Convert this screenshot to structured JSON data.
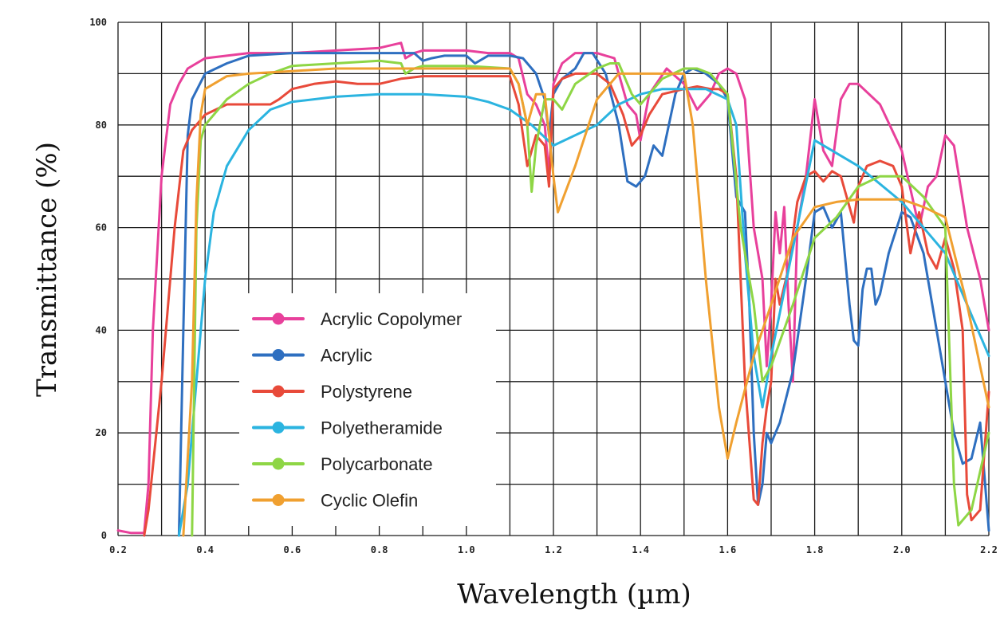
{
  "chart_data": {
    "type": "line",
    "title": "",
    "xlabel": "Wavelength (µm)",
    "ylabel": "Transmittance (%)",
    "xlim": [
      0.2,
      2.2
    ],
    "ylim": [
      0,
      100
    ],
    "grid": true,
    "legend_position": "lower-left",
    "x_ticks": [
      0.2,
      0.4,
      0.6,
      0.8,
      1.0,
      1.2,
      1.4,
      1.6,
      1.8,
      2.0,
      2.2
    ],
    "x_tick_labels": [
      "0.2",
      "0.4",
      "0.6",
      "0.8",
      "1.0",
      "1.2",
      "1.4",
      "1.6",
      "1.8",
      "2.0",
      "2.2"
    ],
    "y_ticks": [
      0,
      20,
      40,
      60,
      80,
      100
    ],
    "y_tick_labels": [
      "0",
      "20",
      "40",
      "60",
      "80",
      "100"
    ],
    "series": [
      {
        "name": "Acrylic Copolymer",
        "color": "#e8409b",
        "x": [
          0.2,
          0.23,
          0.26,
          0.27,
          0.28,
          0.3,
          0.32,
          0.34,
          0.36,
          0.4,
          0.5,
          0.6,
          0.7,
          0.8,
          0.85,
          0.86,
          0.88,
          0.9,
          0.95,
          1.0,
          1.05,
          1.1,
          1.12,
          1.14,
          1.16,
          1.18,
          1.19,
          1.2,
          1.22,
          1.25,
          1.3,
          1.34,
          1.37,
          1.39,
          1.4,
          1.42,
          1.46,
          1.5,
          1.53,
          1.56,
          1.58,
          1.6,
          1.62,
          1.64,
          1.66,
          1.68,
          1.69,
          1.7,
          1.71,
          1.72,
          1.73,
          1.74,
          1.75,
          1.76,
          1.78,
          1.8,
          1.82,
          1.84,
          1.86,
          1.88,
          1.9,
          1.95,
          2.0,
          2.04,
          2.06,
          2.08,
          2.1,
          2.12,
          2.15,
          2.18,
          2.2
        ],
        "y": [
          1,
          0.5,
          0.5,
          10,
          40,
          70,
          84,
          88,
          91,
          93,
          94,
          94,
          94.5,
          95,
          96,
          93,
          94,
          94.5,
          94.5,
          94.5,
          94,
          94,
          93,
          86,
          84,
          80,
          70,
          88,
          92,
          94,
          94,
          93,
          84,
          82,
          77,
          86,
          91,
          88,
          83,
          86,
          90,
          91,
          90,
          85,
          60,
          50,
          33,
          45,
          63,
          55,
          64,
          45,
          30,
          60,
          70,
          85,
          75,
          72,
          85,
          88,
          88,
          84,
          75,
          60,
          68,
          70,
          78,
          76,
          60,
          50,
          40
        ]
      },
      {
        "name": "Acrylic",
        "color": "#2e6fc0",
        "x": [
          0.34,
          0.35,
          0.36,
          0.37,
          0.4,
          0.45,
          0.5,
          0.6,
          0.7,
          0.8,
          0.88,
          0.9,
          0.92,
          0.95,
          1.0,
          1.02,
          1.05,
          1.1,
          1.13,
          1.16,
          1.18,
          1.19,
          1.2,
          1.22,
          1.25,
          1.27,
          1.29,
          1.32,
          1.35,
          1.37,
          1.39,
          1.41,
          1.43,
          1.45,
          1.48,
          1.5,
          1.52,
          1.55,
          1.58,
          1.6,
          1.62,
          1.64,
          1.65,
          1.66,
          1.67,
          1.68,
          1.69,
          1.7,
          1.72,
          1.75,
          1.78,
          1.8,
          1.82,
          1.84,
          1.86,
          1.88,
          1.89,
          1.9,
          1.91,
          1.92,
          1.93,
          1.94,
          1.95,
          1.97,
          2.0,
          2.02,
          2.05,
          2.08,
          2.1,
          2.12,
          2.14,
          2.16,
          2.18,
          2.2
        ],
        "y": [
          0,
          40,
          78,
          85,
          90,
          92,
          93.5,
          94,
          94,
          94,
          94,
          92.5,
          93,
          93.5,
          93.5,
          92,
          93.5,
          93.5,
          93,
          90,
          85,
          78,
          86,
          89,
          91,
          94,
          94,
          90,
          80,
          69,
          68,
          70,
          76,
          74,
          86,
          90,
          91,
          90,
          88,
          85,
          66,
          63,
          45,
          20,
          6,
          10,
          20,
          18,
          22,
          32,
          50,
          63,
          64,
          60,
          63,
          45,
          38,
          37,
          48,
          52,
          52,
          45,
          47,
          55,
          63,
          62,
          55,
          40,
          30,
          20,
          14,
          15,
          22,
          1
        ]
      },
      {
        "name": "Polystyrene",
        "color": "#e84a3a",
        "x": [
          0.26,
          0.27,
          0.3,
          0.33,
          0.35,
          0.37,
          0.4,
          0.45,
          0.5,
          0.55,
          0.57,
          0.6,
          0.65,
          0.7,
          0.75,
          0.8,
          0.85,
          0.9,
          1.0,
          1.1,
          1.12,
          1.13,
          1.14,
          1.15,
          1.16,
          1.18,
          1.19,
          1.2,
          1.22,
          1.25,
          1.3,
          1.33,
          1.36,
          1.38,
          1.4,
          1.42,
          1.45,
          1.5,
          1.53,
          1.56,
          1.58,
          1.6,
          1.62,
          1.64,
          1.66,
          1.67,
          1.68,
          1.69,
          1.7,
          1.71,
          1.72,
          1.74,
          1.76,
          1.78,
          1.8,
          1.82,
          1.84,
          1.86,
          1.88,
          1.89,
          1.9,
          1.92,
          1.95,
          1.98,
          2.0,
          2.02,
          2.04,
          2.06,
          2.08,
          2.1,
          2.12,
          2.14,
          2.15,
          2.16,
          2.18,
          2.2
        ],
        "y": [
          0,
          5,
          30,
          60,
          75,
          79,
          82,
          84,
          84,
          84,
          85,
          87,
          88,
          88.5,
          88,
          88,
          89,
          89.5,
          89.5,
          89.5,
          84,
          78,
          72,
          75,
          78,
          76,
          68,
          87,
          89,
          90,
          90,
          88,
          82,
          76,
          78,
          82,
          86,
          87,
          87.5,
          87,
          87,
          86,
          70,
          30,
          7,
          6,
          18,
          25,
          30,
          50,
          45,
          52,
          65,
          70,
          71,
          69,
          71,
          70,
          64,
          61,
          68,
          72,
          73,
          72,
          68,
          55,
          63,
          55,
          52,
          58,
          52,
          40,
          8,
          3,
          5,
          28
        ]
      },
      {
        "name": "Polyetheramide",
        "color": "#2bb4e0",
        "x": [
          0.34,
          0.36,
          0.38,
          0.4,
          0.42,
          0.45,
          0.5,
          0.55,
          0.6,
          0.7,
          0.8,
          0.9,
          1.0,
          1.05,
          1.1,
          1.15,
          1.2,
          1.3,
          1.35,
          1.4,
          1.45,
          1.5,
          1.55,
          1.6,
          1.62,
          1.64,
          1.66,
          1.68,
          1.7,
          1.8,
          1.9,
          2.0,
          2.1,
          2.2
        ],
        "y": [
          0,
          10,
          30,
          50,
          63,
          72,
          79,
          83,
          84.5,
          85.5,
          86,
          86,
          85.5,
          84.5,
          83,
          80,
          76,
          80,
          84,
          86,
          87,
          87,
          87,
          85,
          80,
          55,
          35,
          25,
          35,
          77,
          72,
          65,
          55,
          35
        ]
      },
      {
        "name": "Polycarbonate",
        "color": "#8ed645",
        "x": [
          0.37,
          0.38,
          0.39,
          0.4,
          0.45,
          0.5,
          0.55,
          0.6,
          0.7,
          0.8,
          0.85,
          0.86,
          0.88,
          0.9,
          1.0,
          1.1,
          1.12,
          1.14,
          1.15,
          1.16,
          1.18,
          1.2,
          1.22,
          1.25,
          1.3,
          1.33,
          1.35,
          1.38,
          1.4,
          1.42,
          1.45,
          1.5,
          1.53,
          1.56,
          1.58,
          1.6,
          1.63,
          1.66,
          1.68,
          1.7,
          1.75,
          1.8,
          1.85,
          1.9,
          1.95,
          2.0,
          2.05,
          2.1,
          2.12,
          2.13,
          2.14,
          2.16,
          2.2
        ],
        "y": [
          0,
          60,
          77,
          80,
          85,
          88,
          90,
          91.5,
          92,
          92.5,
          92,
          90,
          91,
          91.5,
          91.5,
          91,
          88,
          80,
          67,
          76,
          85,
          85,
          83,
          88,
          91,
          92,
          92,
          86,
          84,
          86,
          89,
          91,
          91,
          90,
          88,
          86,
          60,
          45,
          30,
          33,
          45,
          58,
          62,
          68,
          70,
          70,
          66,
          60,
          10,
          2,
          3,
          5,
          20
        ]
      },
      {
        "name": "Cyclic Olefin",
        "color": "#f0a030",
        "x": [
          0.35,
          0.37,
          0.38,
          0.39,
          0.4,
          0.45,
          0.5,
          0.6,
          0.7,
          0.8,
          0.9,
          1.0,
          1.1,
          1.12,
          1.14,
          1.16,
          1.18,
          1.2,
          1.21,
          1.25,
          1.3,
          1.35,
          1.4,
          1.5,
          1.52,
          1.55,
          1.58,
          1.6,
          1.62,
          1.66,
          1.7,
          1.75,
          1.8,
          1.85,
          1.9,
          1.95,
          2.0,
          2.05,
          2.1,
          2.15,
          2.2
        ],
        "y": [
          0,
          30,
          65,
          82,
          87,
          89.5,
          90,
          90.5,
          91,
          91,
          91,
          91,
          91,
          88,
          80,
          86,
          86,
          70,
          63,
          72,
          85,
          90,
          90,
          90,
          80,
          50,
          25,
          15,
          22,
          35,
          45,
          58,
          64,
          65,
          65.5,
          65.5,
          65.5,
          64,
          62,
          45,
          25
        ]
      }
    ]
  }
}
